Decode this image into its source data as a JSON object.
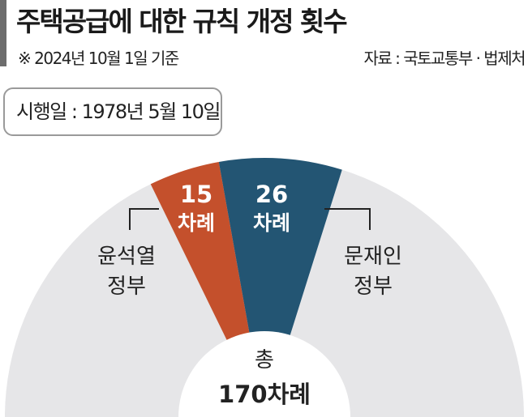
{
  "title": "주택공급에 대한 규칙 개정 횟수",
  "note": "※ 2024년 10월 1일 기준",
  "source": "자료 : 국토교통부 · 법제처",
  "effective_date": "시행일 : 1978년 5월 10일",
  "chart_data": {
    "type": "pie",
    "style": "half-donut",
    "total": 170,
    "total_label_line1": "총",
    "total_label_line2": "170차례",
    "series": [
      {
        "name": "윤석열 정부",
        "name_line1": "윤석열",
        "name_line2": "정부",
        "value": 15,
        "value_label": "15",
        "unit_label": "차례",
        "color": "#c4502c"
      },
      {
        "name": "문재인 정부",
        "name_line1": "문재인",
        "name_line2": "정부",
        "value": 26,
        "value_label": "26",
        "unit_label": "차례",
        "color": "#235573"
      }
    ],
    "remainder_color": "#e6e6e8"
  }
}
